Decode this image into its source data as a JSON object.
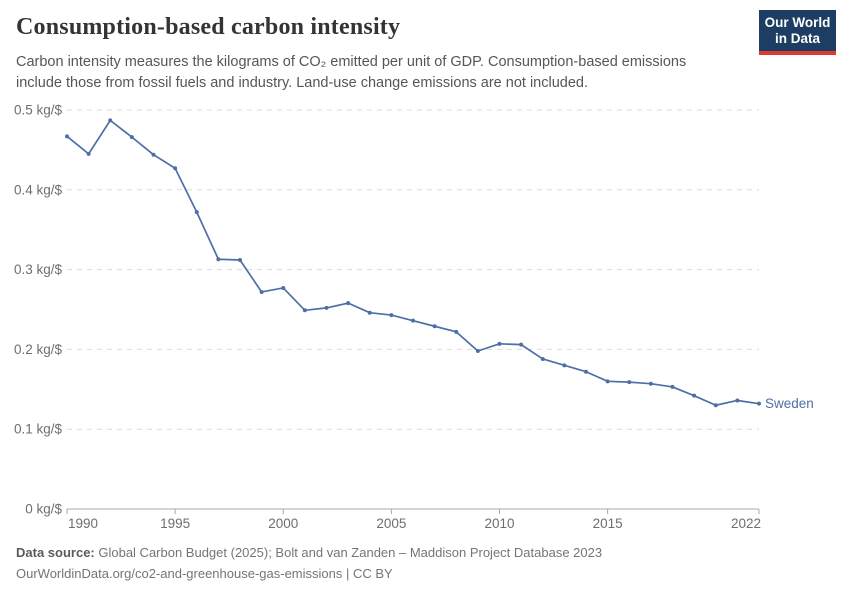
{
  "header": {
    "title": "Consumption-based carbon intensity",
    "logo": {
      "line1": "Our World",
      "line2": "in Data"
    }
  },
  "subtitle": "Carbon intensity measures the kilograms of CO₂ emitted per unit of GDP. Consumption-based emissions include those from fossil fuels and industry. Land-use change emissions are not included.",
  "chart_data": {
    "type": "line",
    "title": "Consumption-based carbon intensity",
    "unit": "kg/$",
    "x": [
      1990,
      1991,
      1992,
      1993,
      1994,
      1995,
      1996,
      1997,
      1998,
      1999,
      2000,
      2001,
      2002,
      2003,
      2004,
      2005,
      2006,
      2007,
      2008,
      2009,
      2010,
      2011,
      2012,
      2013,
      2014,
      2015,
      2016,
      2017,
      2018,
      2019,
      2020,
      2021,
      2022
    ],
    "series": [
      {
        "name": "Sweden",
        "color": "#4e6fa5",
        "values": [
          0.467,
          0.445,
          0.487,
          0.466,
          0.444,
          0.427,
          0.372,
          0.313,
          0.312,
          0.272,
          0.277,
          0.249,
          0.252,
          0.258,
          0.246,
          0.243,
          0.236,
          0.229,
          0.222,
          0.198,
          0.207,
          0.206,
          0.188,
          0.18,
          0.172,
          0.16,
          0.159,
          0.157,
          0.153,
          0.142,
          0.13,
          0.136,
          0.132
        ]
      }
    ],
    "ylim": [
      0,
      0.5
    ],
    "yticks": [
      0,
      0.1,
      0.2,
      0.3,
      0.4,
      0.5
    ],
    "ytick_labels": [
      "0 kg/$",
      "0.1 kg/$",
      "0.2 kg/$",
      "0.3 kg/$",
      "0.4 kg/$",
      "0.5 kg/$"
    ],
    "xticks": [
      1990,
      1995,
      2000,
      2005,
      2010,
      2015,
      2022
    ],
    "grid": true,
    "legend_position": "end-of-line label"
  },
  "footer": {
    "source_label": "Data source:",
    "source_text": " Global Carbon Budget (2025); Bolt and van Zanden – Maddison Project Database 2023",
    "url_line": "OurWorldinData.org/co2-and-greenhouse-gas-emissions | CC BY"
  },
  "colors": {
    "line": "#4e6fa5",
    "grid": "#dcdcdc",
    "axis": "#a9a9a9",
    "tick_text": "#6e6e6e",
    "logo_bg": "#1d3d63",
    "logo_stripe": "#dc3b32"
  }
}
